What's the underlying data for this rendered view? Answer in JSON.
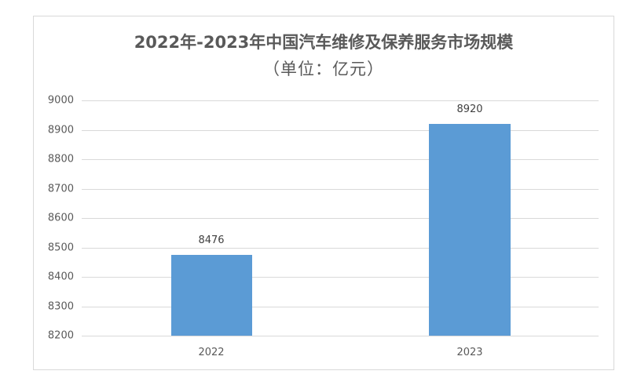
{
  "chart_data": {
    "type": "bar",
    "title": "2022年-2023年中国汽车维修及保养服务市场规模",
    "subtitle": "（单位：亿元）",
    "categories": [
      "2022",
      "2023"
    ],
    "values": [
      8476,
      8920
    ],
    "data_labels": [
      "8476",
      "8920"
    ],
    "xlabel": "",
    "ylabel": "",
    "ylim": [
      8200,
      9000
    ],
    "yticks": [
      "9000",
      "8900",
      "8800",
      "8700",
      "8600",
      "8500",
      "8400",
      "8300",
      "8200"
    ],
    "grid": true,
    "legend": null,
    "bar_color": "#5b9bd5"
  }
}
